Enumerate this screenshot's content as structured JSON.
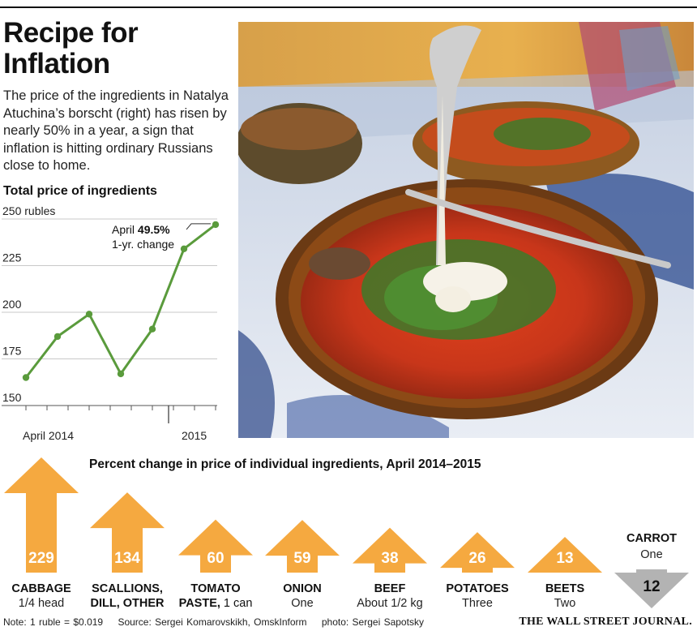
{
  "header": {
    "title_line1": "Recipe for",
    "title_line2": "Inflation",
    "dek": "The price of the ingredients in Natalya Atuchina’s borscht (right) has risen by nearly 50% in a year, a sign that inflation is hitting ordinary Russians close to home."
  },
  "chart_data": [
    {
      "type": "line",
      "title": "Total price of ingredients",
      "ylabel": "rubles",
      "y_ticks": [
        150,
        175,
        200,
        225,
        250
      ],
      "y_tick_labels": [
        "150",
        "175",
        "200",
        "225",
        "250 rubles"
      ],
      "ylim": [
        150,
        250
      ],
      "x_tick_labels": [
        "April 2014",
        "2015"
      ],
      "x": [
        "Apr 2014",
        "Jun 2014",
        "Aug 2014",
        "Oct 2014",
        "Dec 2014",
        "Feb 2015",
        "Apr 2015"
      ],
      "values": [
        165,
        187,
        199,
        167,
        191,
        234,
        247
      ],
      "annotation": {
        "label": "April",
        "value": "49.5%",
        "sub": "1-yr. change"
      },
      "color": "#5a9b3c"
    },
    {
      "type": "bar",
      "title": "Percent change in price of individual ingredients, April 2014–2015",
      "categories": [
        "CABBAGE",
        "SCALLIONS, DILL, OTHER",
        "TOMATO PASTE, 1 can",
        "ONION",
        "BEEF",
        "POTATOES",
        "BEETS",
        "CARROT"
      ],
      "values": [
        229,
        134,
        60,
        59,
        38,
        26,
        13,
        -12
      ],
      "items": [
        {
          "name1": "CABBAGE",
          "name2": "",
          "qty": "1/4 head",
          "value": 229,
          "label": "229"
        },
        {
          "name1": "SCALLIONS,",
          "name2": "DILL, OTHER",
          "qty": "",
          "value": 134,
          "label": "134"
        },
        {
          "name1": "TOMATO",
          "name2": "PASTE,",
          "qty": "1 can",
          "value": 60,
          "label": "60"
        },
        {
          "name1": "ONION",
          "name2": "",
          "qty": "One",
          "value": 59,
          "label": "59"
        },
        {
          "name1": "BEEF",
          "name2": "",
          "qty": "About 1/2 kg",
          "value": 38,
          "label": "38"
        },
        {
          "name1": "POTATOES",
          "name2": "",
          "qty": "Three",
          "value": 26,
          "label": "26"
        },
        {
          "name1": "BEETS",
          "name2": "",
          "qty": "Two",
          "value": 13,
          "label": "13"
        },
        {
          "name1": "CARROT",
          "name2": "",
          "qty": "One",
          "value": -12,
          "label": "12"
        }
      ],
      "up_color": "#f5a940",
      "down_color": "#b3b3b3"
    }
  ],
  "footer": {
    "note": "Note: 1 ruble = $0.019",
    "source": "Source: Sergei Komarovskikh, OmskInform",
    "photo": "photo: Sergei Sapotsky",
    "logo": "THE WALL STREET JOURNAL."
  }
}
